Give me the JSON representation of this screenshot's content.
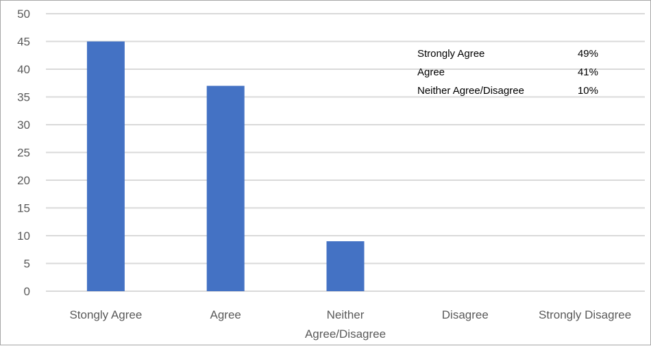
{
  "chart_data": {
    "type": "bar",
    "title": "",
    "xlabel": "",
    "ylabel": "",
    "categories": [
      "Stongly Agree",
      "Agree",
      "Neither Agree/Disagree",
      "Disagree",
      "Strongly Disagree"
    ],
    "category_lines": [
      [
        "Stongly Agree"
      ],
      [
        "Agree"
      ],
      [
        "Neither",
        "Agree/Disagree"
      ],
      [
        "Disagree"
      ],
      [
        "Strongly Disagree"
      ]
    ],
    "values": [
      45,
      37,
      9,
      0,
      0
    ],
    "ylim": [
      0,
      50
    ],
    "yticks": [
      0,
      5,
      10,
      15,
      20,
      25,
      30,
      35,
      40,
      45,
      50
    ],
    "grid": true,
    "bar_color": "#4472c4",
    "grid_color": "#d9d9d9",
    "annotation": [
      {
        "label": "Strongly Agree",
        "value": "49%"
      },
      {
        "label": "Agree",
        "value": "41%"
      },
      {
        "label": "Neither Agree/Disagree",
        "value": "10%"
      }
    ]
  }
}
